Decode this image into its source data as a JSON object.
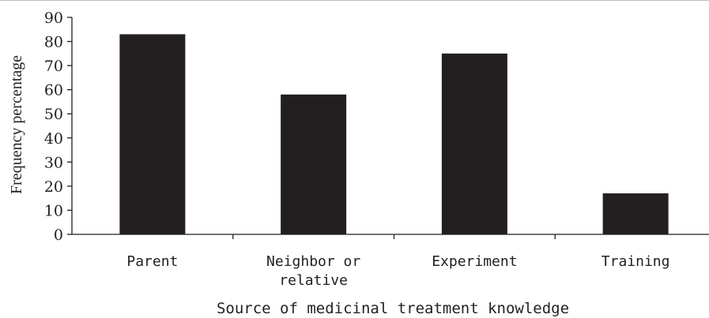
{
  "chart_data": {
    "type": "bar",
    "title": "",
    "xlabel": "Source of medicinal treatment knowledge",
    "ylabel": "Frequency percentage",
    "categories": [
      "Parent",
      "Neighbor or relative",
      "Experiment",
      "Training"
    ],
    "category_label_lines": [
      [
        "Parent"
      ],
      [
        "Neighbor or",
        "relative"
      ],
      [
        "Experiment"
      ],
      [
        "Training"
      ]
    ],
    "values": [
      83,
      58,
      75,
      17
    ],
    "ylim": [
      0,
      90
    ],
    "yticks": [
      0,
      10,
      20,
      30,
      40,
      50,
      60,
      70,
      80,
      90
    ],
    "grid": false,
    "legend": "none",
    "bar_color": "#231f20"
  }
}
